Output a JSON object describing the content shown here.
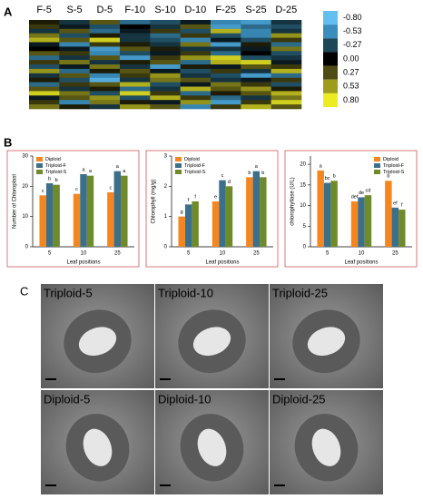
{
  "chart_data": [
    {
      "type": "heatmap",
      "panel_label": "A",
      "categories": [
        "F-5",
        "S-5",
        "D-5",
        "F-10",
        "S-10",
        "D-10",
        "F-25",
        "S-25",
        "D-25"
      ],
      "values": [
        [
          0.1,
          -0.2,
          0.3,
          -0.4,
          -0.3,
          -0.1,
          -0.5,
          -0.6,
          -0.2
        ],
        [
          0.2,
          -0.1,
          -0.3,
          0.0,
          -0.2,
          0.3,
          -0.6,
          -0.4,
          -0.3
        ],
        [
          -0.2,
          0.3,
          -0.4,
          -0.1,
          0.2,
          -0.3,
          0.6,
          -0.5,
          -0.2
        ],
        [
          0.4,
          -0.3,
          0.1,
          -0.2,
          -0.4,
          0.2,
          -0.3,
          -0.5,
          0.5
        ],
        [
          0.6,
          0.3,
          0.7,
          -0.2,
          -0.3,
          -0.5,
          -0.1,
          -0.3,
          0.2
        ],
        [
          -0.1,
          -0.5,
          0.2,
          0.1,
          -0.2,
          0.4,
          -0.6,
          0.1,
          -0.4
        ],
        [
          0.0,
          -0.1,
          -0.6,
          0.3,
          0.1,
          -0.2,
          -0.2,
          -0.1,
          0.4
        ],
        [
          0.3,
          0.2,
          -0.5,
          -0.3,
          -0.1,
          0.2,
          -0.4,
          0.0,
          -0.3
        ],
        [
          -0.4,
          -0.2,
          0.3,
          -0.6,
          0.2,
          0.5,
          0.7,
          -0.3,
          -0.2
        ],
        [
          0.2,
          0.4,
          -0.2,
          0.1,
          0.3,
          -0.4,
          0.6,
          0.7,
          -0.1
        ],
        [
          -0.3,
          -0.1,
          0.4,
          -0.2,
          -0.6,
          0.1,
          -0.1,
          0.3,
          0.2
        ],
        [
          0.5,
          -0.4,
          0.1,
          0.3,
          -0.1,
          -0.3,
          0.2,
          -0.2,
          0.6
        ],
        [
          -0.2,
          0.3,
          -0.5,
          0.2,
          0.5,
          -0.2,
          -0.3,
          -0.6,
          -0.4
        ],
        [
          0.1,
          -0.3,
          -0.7,
          -0.2,
          0.4,
          0.3,
          -0.2,
          -0.1,
          0.2
        ],
        [
          -0.4,
          0.2,
          0.3,
          0.6,
          -0.3,
          -0.1,
          0.4,
          0.2,
          -0.3
        ],
        [
          0.3,
          -0.2,
          0.1,
          -0.4,
          -0.2,
          0.6,
          0.3,
          0.5,
          0.1
        ],
        [
          0.7,
          0.4,
          -0.3,
          0.7,
          0.2,
          -0.4,
          0.1,
          0.3,
          0.6
        ],
        [
          -0.1,
          0.3,
          0.5,
          -0.3,
          0.6,
          0.2,
          -0.4,
          -0.2,
          0.4
        ],
        [
          0.2,
          -0.5,
          0.4,
          0.1,
          -0.1,
          0.5,
          -0.6,
          0.2,
          0.7
        ],
        [
          0.4,
          0.1,
          -0.2,
          0.5,
          0.3,
          -0.5,
          0.2,
          0.6,
          0.3
        ]
      ],
      "colorbar_ticks": [
        {
          "value": -0.8,
          "label": "-0.80"
        },
        -0.53,
        -0.27,
        {
          "value": 0,
          "label": "0.00"
        },
        0.27,
        0.53,
        {
          "value": 0.8,
          "label": "0.80"
        }
      ],
      "colorscale": [
        "#63bff0",
        "#3a8dbd",
        "#1d4657",
        "#000000",
        "#4e4c12",
        "#9e9d1b",
        "#ecec22"
      ]
    },
    {
      "type": "bar",
      "panel_label": "B",
      "ylabel": "Number of Chloroplast",
      "xlabel": "Leaf positions",
      "categories": [
        "5",
        "10",
        "25"
      ],
      "ylim": [
        0,
        30
      ],
      "yticks": [
        0,
        10,
        20,
        30
      ],
      "legend": "upper left",
      "series": [
        {
          "name": "Diploid",
          "color": "#f5861f",
          "values": [
            17,
            17.5,
            18
          ],
          "letters": [
            "c",
            "c",
            "c"
          ]
        },
        {
          "name": "Triploid-F",
          "color": "#3c6f8a",
          "values": [
            21,
            24,
            25
          ],
          "letters": [
            "b",
            "a",
            "a"
          ]
        },
        {
          "name": "Triploid-S",
          "color": "#6f8a2a",
          "values": [
            20.5,
            23.5,
            23.5
          ],
          "letters": [
            "b",
            "a",
            "a"
          ]
        }
      ]
    },
    {
      "type": "bar",
      "ylabel": "Chlorophyll (mg/g)",
      "xlabel": "Leaf positions",
      "categories": [
        "5",
        "10",
        "25"
      ],
      "ylim": [
        0,
        3
      ],
      "yticks": [
        0,
        1,
        2,
        3
      ],
      "legend": "upper left",
      "series": [
        {
          "name": "Diploid",
          "color": "#f5861f",
          "values": [
            1.0,
            1.5,
            2.3
          ],
          "letters": [
            "g",
            "e",
            "b"
          ]
        },
        {
          "name": "Triploid-F",
          "color": "#3c6f8a",
          "values": [
            1.4,
            2.2,
            2.5
          ],
          "letters": [
            "f",
            "c",
            "a"
          ]
        },
        {
          "name": "Triploid-S",
          "color": "#6f8a2a",
          "values": [
            1.5,
            2.0,
            2.3
          ],
          "letters": [
            "f",
            "d",
            "b"
          ]
        }
      ]
    },
    {
      "type": "bar",
      "ylabel": "chlorophyllase (U/L)",
      "xlabel": "Leaf positions",
      "categories": [
        "5",
        "10",
        "25"
      ],
      "ylim": [
        0,
        22
      ],
      "yticks": [
        0,
        5,
        10,
        15,
        20
      ],
      "legend": "upper right",
      "series": [
        {
          "name": "Diploid",
          "color": "#f5861f",
          "values": [
            18.5,
            11,
            16
          ],
          "letters": [
            "a",
            "def",
            "b"
          ]
        },
        {
          "name": "Triploid-F",
          "color": "#3c6f8a",
          "values": [
            15.5,
            12,
            9.5
          ],
          "letters": [
            "bc",
            "de",
            "ef"
          ]
        },
        {
          "name": "Triploid-S",
          "color": "#6f8a2a",
          "values": [
            16,
            12.5,
            9
          ],
          "letters": [
            "b",
            "cd",
            "f"
          ]
        }
      ]
    }
  ],
  "micrographs": {
    "panel_label": "C",
    "images": [
      "Triploid-5",
      "Triploid-10",
      "Triploid-25",
      "Diploid-5",
      "Diploid-10",
      "Diploid-25"
    ]
  }
}
